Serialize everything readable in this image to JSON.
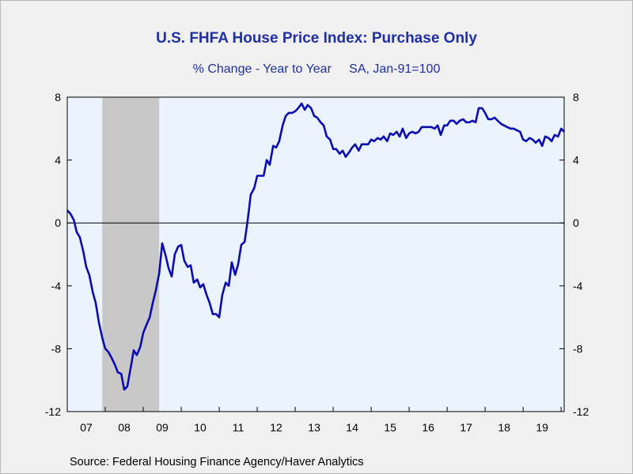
{
  "chart_data": {
    "type": "line",
    "title": "U.S. FHFA House Price Index: Purchase Only",
    "subtitle": "% Change - Year to Year",
    "subtitle_note": "SA, Jan-91=100",
    "source": "Source:  Federal Housing Finance Agency/Haver Analytics",
    "xlabel": "",
    "ylabel": "",
    "ylim": [
      -12,
      8
    ],
    "yticks": [
      "8",
      "4",
      "0",
      "-4",
      "-8",
      "-12"
    ],
    "yticks_right": [
      "8",
      "4",
      "0",
      "-4",
      "-8",
      "-12"
    ],
    "xticks": [
      "07",
      "08",
      "09",
      "10",
      "11",
      "12",
      "13",
      "14",
      "15",
      "16",
      "17",
      "18",
      "19"
    ],
    "x_start_year": 2007,
    "x_end_year": 2020.08,
    "recession_shading": {
      "start": 2007.92,
      "end": 2009.42,
      "color": "#c8c8c8"
    },
    "grid": false,
    "zero_line": true,
    "colors": {
      "line": "#0b0bb4",
      "plot_bg": "#eaf3ff",
      "title": "#1f2fa6"
    },
    "series": [
      {
        "x": [
          2007.0,
          2007.08,
          2007.17,
          2007.25,
          2007.33,
          2007.42,
          2007.5,
          2007.58,
          2007.67,
          2007.75,
          2007.83,
          2007.92,
          2008.0,
          2008.08,
          2008.17,
          2008.25,
          2008.33,
          2008.42,
          2008.5,
          2008.58,
          2008.67,
          2008.75,
          2008.83,
          2008.92,
          2009.0,
          2009.08,
          2009.17,
          2009.25,
          2009.33,
          2009.42,
          2009.5,
          2009.58,
          2009.67,
          2009.75,
          2009.83,
          2009.92,
          2010.0,
          2010.08,
          2010.17,
          2010.25,
          2010.33,
          2010.42,
          2010.5,
          2010.58,
          2010.67,
          2010.75,
          2010.83,
          2010.92,
          2011.0,
          2011.08,
          2011.17,
          2011.25,
          2011.33,
          2011.42,
          2011.5,
          2011.58,
          2011.67,
          2011.75,
          2011.83,
          2011.92,
          2012.0,
          2012.08,
          2012.17,
          2012.25,
          2012.33,
          2012.42,
          2012.5,
          2012.58,
          2012.67,
          2012.75,
          2012.83,
          2012.92,
          2013.0,
          2013.08,
          2013.17,
          2013.25,
          2013.33,
          2013.42,
          2013.5,
          2013.58,
          2013.67,
          2013.75,
          2013.83,
          2013.92,
          2014.0,
          2014.08,
          2014.17,
          2014.25,
          2014.33,
          2014.42,
          2014.5,
          2014.58,
          2014.67,
          2014.75,
          2014.83,
          2014.92,
          2015.0,
          2015.08,
          2015.17,
          2015.25,
          2015.33,
          2015.42,
          2015.5,
          2015.58,
          2015.67,
          2015.75,
          2015.83,
          2015.92,
          2016.0,
          2016.08,
          2016.17,
          2016.25,
          2016.33,
          2016.42,
          2016.5,
          2016.58,
          2016.67,
          2016.75,
          2016.83,
          2016.92,
          2017.0,
          2017.08,
          2017.17,
          2017.25,
          2017.33,
          2017.42,
          2017.5,
          2017.58,
          2017.67,
          2017.75,
          2017.83,
          2017.92,
          2018.0,
          2018.08,
          2018.17,
          2018.25,
          2018.33,
          2018.42,
          2018.5,
          2018.58,
          2018.67,
          2018.75,
          2018.83,
          2018.92,
          2019.0,
          2019.08,
          2019.17,
          2019.25,
          2019.33,
          2019.42,
          2019.5,
          2019.58,
          2019.67,
          2019.75,
          2019.83,
          2019.92,
          2020.0,
          2020.08
        ],
        "y": [
          0.8,
          0.6,
          0.2,
          -0.6,
          -0.9,
          -1.8,
          -2.8,
          -3.3,
          -4.4,
          -5.1,
          -6.3,
          -7.3,
          -8.0,
          -8.2,
          -8.6,
          -9.0,
          -9.5,
          -9.6,
          -10.6,
          -10.4,
          -9.2,
          -8.1,
          -8.4,
          -7.9,
          -7.0,
          -6.5,
          -6.0,
          -5.1,
          -4.3,
          -3.2,
          -1.3,
          -2.0,
          -2.9,
          -3.4,
          -2.0,
          -1.5,
          -1.4,
          -2.4,
          -2.8,
          -2.7,
          -3.8,
          -3.6,
          -4.1,
          -3.9,
          -4.6,
          -5.1,
          -5.8,
          -5.8,
          -6.0,
          -4.6,
          -3.8,
          -4.0,
          -2.5,
          -3.3,
          -2.6,
          -1.4,
          -1.2,
          0.2,
          1.8,
          2.2,
          3.0,
          3.0,
          3.0,
          4.0,
          3.7,
          4.9,
          4.8,
          5.2,
          6.2,
          6.8,
          7.0,
          7.0,
          7.1,
          7.3,
          7.6,
          7.2,
          7.5,
          7.3,
          6.8,
          6.7,
          6.4,
          6.2,
          5.5,
          5.3,
          4.7,
          4.7,
          4.4,
          4.6,
          4.2,
          4.5,
          4.8,
          5.0,
          4.6,
          5.0,
          5.0,
          5.0,
          5.3,
          5.2,
          5.4,
          5.3,
          5.5,
          5.2,
          5.7,
          5.6,
          5.8,
          5.5,
          6.0,
          5.4,
          5.7,
          5.8,
          5.7,
          5.8,
          6.1,
          6.1,
          6.1,
          6.1,
          6.0,
          6.2,
          5.6,
          6.2,
          6.2,
          6.5,
          6.5,
          6.3,
          6.5,
          6.6,
          6.4,
          6.4,
          6.5,
          6.4,
          7.3,
          7.3,
          7.0,
          6.6,
          6.6,
          6.7,
          6.5,
          6.3,
          6.2,
          6.1,
          6.0,
          6.0,
          5.9,
          5.8,
          5.3,
          5.2,
          5.4,
          5.3,
          5.1,
          5.3,
          4.9,
          5.5,
          5.4,
          5.2,
          5.6,
          5.5,
          6.0,
          5.8
        ]
      }
    ]
  }
}
